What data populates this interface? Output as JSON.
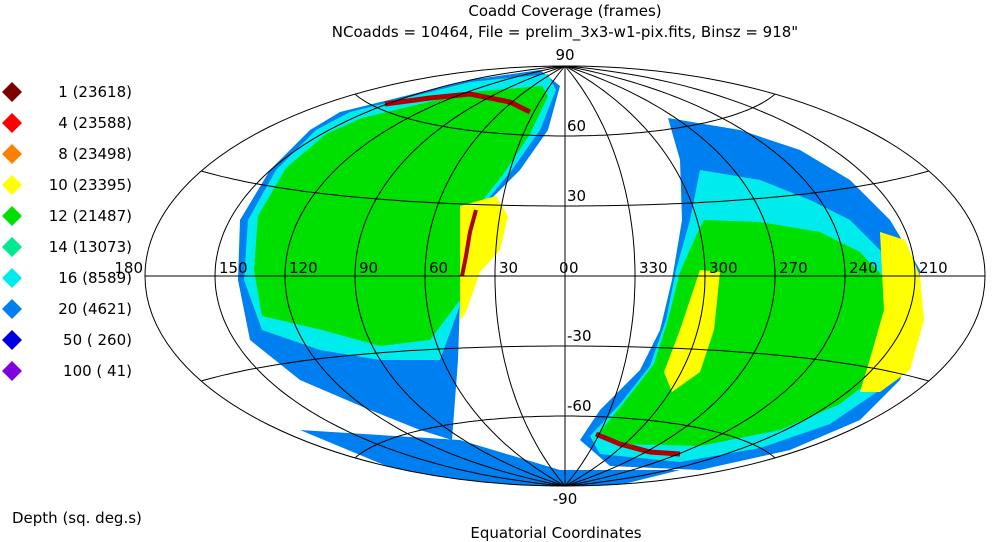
{
  "chart_data": {
    "type": "heatmap",
    "projection": "aitoff",
    "title": "Coadd Coverage (frames)",
    "subtitle": "NCoadds = 10464, File = prelim_3x3-w1-pix.fits, Binsz = 918\"",
    "xlabel": "Equatorial Coordinates",
    "legend_title": "Depth (sq. deg.s)",
    "legend_placement": "left",
    "legend": [
      {
        "label": "1 (23618)",
        "color": "#7f0000"
      },
      {
        "label": "4 (23588)",
        "color": "#ff0000"
      },
      {
        "label": "8 (23498)",
        "color": "#ff8000"
      },
      {
        "label": "10 (23395)",
        "color": "#ffff00"
      },
      {
        "label": "12 (21487)",
        "color": "#00e000"
      },
      {
        "label": "14 (13073)",
        "color": "#00e890"
      },
      {
        "label": "16 (8589)",
        "color": "#00ecec"
      },
      {
        "label": "20 (4621)",
        "color": "#0080f0"
      },
      {
        "label": "50 ( 260)",
        "color": "#0000e0"
      },
      {
        "label": "100 (  41)",
        "color": "#8000e0"
      }
    ],
    "lon_labels": [
      "180",
      "150",
      "120",
      "90",
      "60",
      "30",
      "0",
      "330",
      "300",
      "270",
      "240",
      "210",
      "180"
    ],
    "lat_labels": [
      "90",
      "60",
      "30",
      "-30",
      "-60",
      "-90"
    ],
    "lat_zero_label": "0",
    "grid": true
  }
}
